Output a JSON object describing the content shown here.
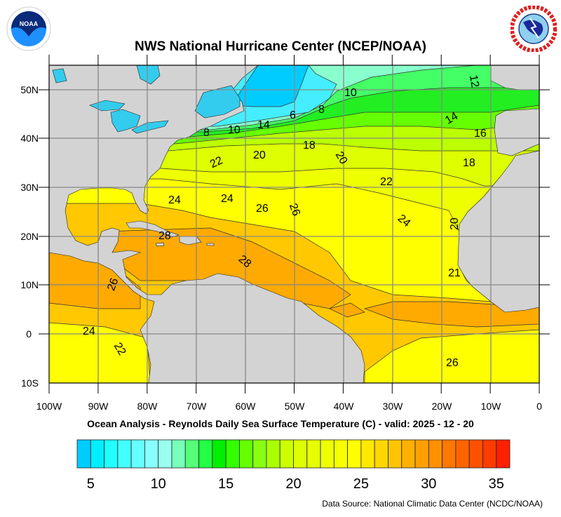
{
  "header": {
    "title": "NWS National Hurricane Center (NCEP/NOAA)",
    "left_logo": "NOAA",
    "right_logo": "NATIONAL WEATHER SERVICE"
  },
  "map": {
    "subtitle": "Ocean Analysis - Reynolds Daily Sea Surface Temperature (C) - valid: 2025 - 12 - 20",
    "lon_labels": [
      "100W",
      "90W",
      "80W",
      "70W",
      "60W",
      "50W",
      "40W",
      "30W",
      "20W",
      "10W",
      "0"
    ],
    "lat_labels": [
      "50N",
      "40N",
      "30N",
      "20N",
      "10N",
      "0",
      "10S"
    ],
    "contour_labels": [
      "8",
      "10",
      "14",
      "6",
      "8",
      "10",
      "12",
      "14",
      "16",
      "18",
      "18",
      "20",
      "20",
      "22",
      "22",
      "24",
      "24",
      "26",
      "26",
      "24",
      "20",
      "21",
      "28",
      "28",
      "26",
      "24",
      "22",
      "26"
    ],
    "land_color": "#d3d3d3"
  },
  "colorbar": {
    "min": 4,
    "max": 36,
    "colors": [
      "#00ccff",
      "#00eeff",
      "#22ffff",
      "#44ffff",
      "#66ffff",
      "#88ffff",
      "#99ffee",
      "#77ffbb",
      "#55ff77",
      "#22ff44",
      "#00ee00",
      "#33ff00",
      "#66ff00",
      "#88ff11",
      "#aaff00",
      "#ccff00",
      "#ddff00",
      "#e6ff00",
      "#eeff00",
      "#f5ff00",
      "#ffff00",
      "#ffe800",
      "#ffd700",
      "#ffc400",
      "#ffb000",
      "#ffa000",
      "#ff9000",
      "#ff7800",
      "#ff6400",
      "#ff5000",
      "#ff3c00",
      "#ff2000"
    ],
    "labels": [
      "5",
      "10",
      "15",
      "20",
      "25",
      "30",
      "35"
    ]
  },
  "footer": {
    "source": "Data Source: National Climatic Data Center (NCDC/NOAA)"
  }
}
